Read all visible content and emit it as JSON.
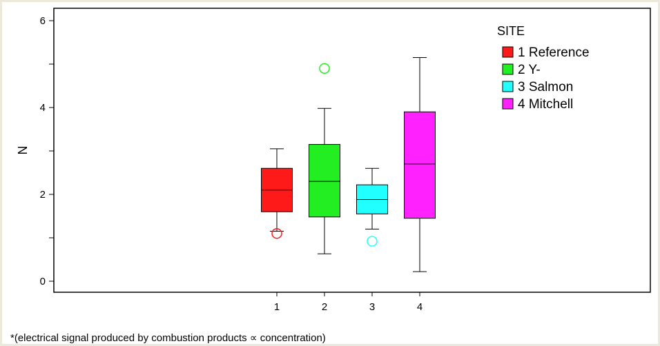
{
  "chart_data": {
    "type": "boxplot",
    "ylabel": "N",
    "xlabel": "",
    "ylim": [
      0,
      6
    ],
    "y_ticks": [
      "0",
      "2",
      "4",
      "6"
    ],
    "categories": [
      "1",
      "2",
      "3",
      "4"
    ],
    "legend": {
      "title": "SITE",
      "placement": "top-right",
      "entries": [
        {
          "label": "1 Reference",
          "color": "#ff1a1a"
        },
        {
          "label": "2 Y-",
          "color": "#22ee22"
        },
        {
          "label": "3 Salmon",
          "color": "#22ffff"
        },
        {
          "label": "4 Mitchell",
          "color": "#ff22ff"
        }
      ]
    },
    "series": [
      {
        "category": "1",
        "color": "#ff1a1a",
        "whisker_low": 1.15,
        "q1": 1.6,
        "median": 2.1,
        "q3": 2.6,
        "whisker_high": 3.05,
        "outliers": [
          1.1
        ]
      },
      {
        "category": "2",
        "color": "#22ee22",
        "whisker_low": 0.63,
        "q1": 1.48,
        "median": 2.3,
        "q3": 3.15,
        "whisker_high": 3.98,
        "outliers": [
          4.9
        ]
      },
      {
        "category": "3",
        "color": "#22ffff",
        "whisker_low": 1.2,
        "q1": 1.55,
        "median": 1.88,
        "q3": 2.22,
        "whisker_high": 2.6,
        "outliers": [
          0.92
        ]
      },
      {
        "category": "4",
        "color": "#ff22ff",
        "whisker_low": 0.22,
        "q1": 1.45,
        "median": 2.7,
        "q3": 3.9,
        "whisker_high": 5.15,
        "outliers": []
      }
    ]
  },
  "footnote": "*(electrical signal produced by combustion products ∝ concentration)"
}
